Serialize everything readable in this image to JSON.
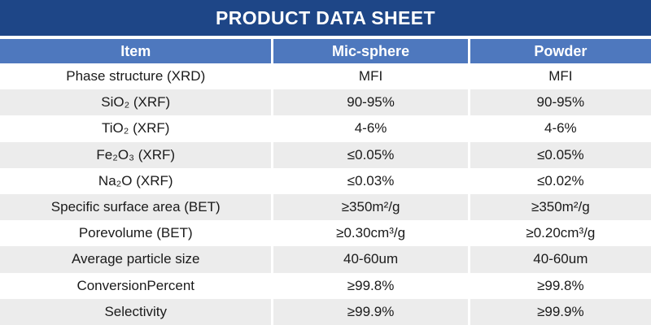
{
  "title": "PRODUCT DATA SHEET",
  "colors": {
    "title_bar": "#1E4687",
    "header_row": "#4E78BE",
    "header_text": "#FFFFFF",
    "row_alt": "#ECECEC",
    "body_text": "#1A1A1A"
  },
  "table": {
    "columns": [
      "Item",
      "Mic-sphere",
      "Powder"
    ],
    "rows": [
      {
        "item": "Phase structure (XRD)",
        "mic_sphere": "MFI",
        "powder": "MFI"
      },
      {
        "item": "SiO₂ (XRF)",
        "mic_sphere": "90-95%",
        "powder": "90-95%"
      },
      {
        "item": "TiO₂ (XRF)",
        "mic_sphere": "4-6%",
        "powder": "4-6%"
      },
      {
        "item": "Fe₂O₃ (XRF)",
        "mic_sphere": "≤0.05%",
        "powder": "≤0.05%"
      },
      {
        "item": "Na₂O (XRF)",
        "mic_sphere": "≤0.03%",
        "powder": "≤0.02%"
      },
      {
        "item": "Specific surface area (BET)",
        "mic_sphere": "≥350m²/g",
        "powder": "≥350m²/g"
      },
      {
        "item": "Porevolume (BET)",
        "mic_sphere": "≥0.30cm³/g",
        "powder": "≥0.20cm³/g"
      },
      {
        "item": "Average particle size",
        "mic_sphere": "40-60um",
        "powder": "40-60um"
      },
      {
        "item": "ConversionPercent",
        "mic_sphere": "≥99.8%",
        "powder": "≥99.8%"
      },
      {
        "item": "Selectivity",
        "mic_sphere": "≥99.9%",
        "powder": "≥99.9%"
      }
    ]
  }
}
